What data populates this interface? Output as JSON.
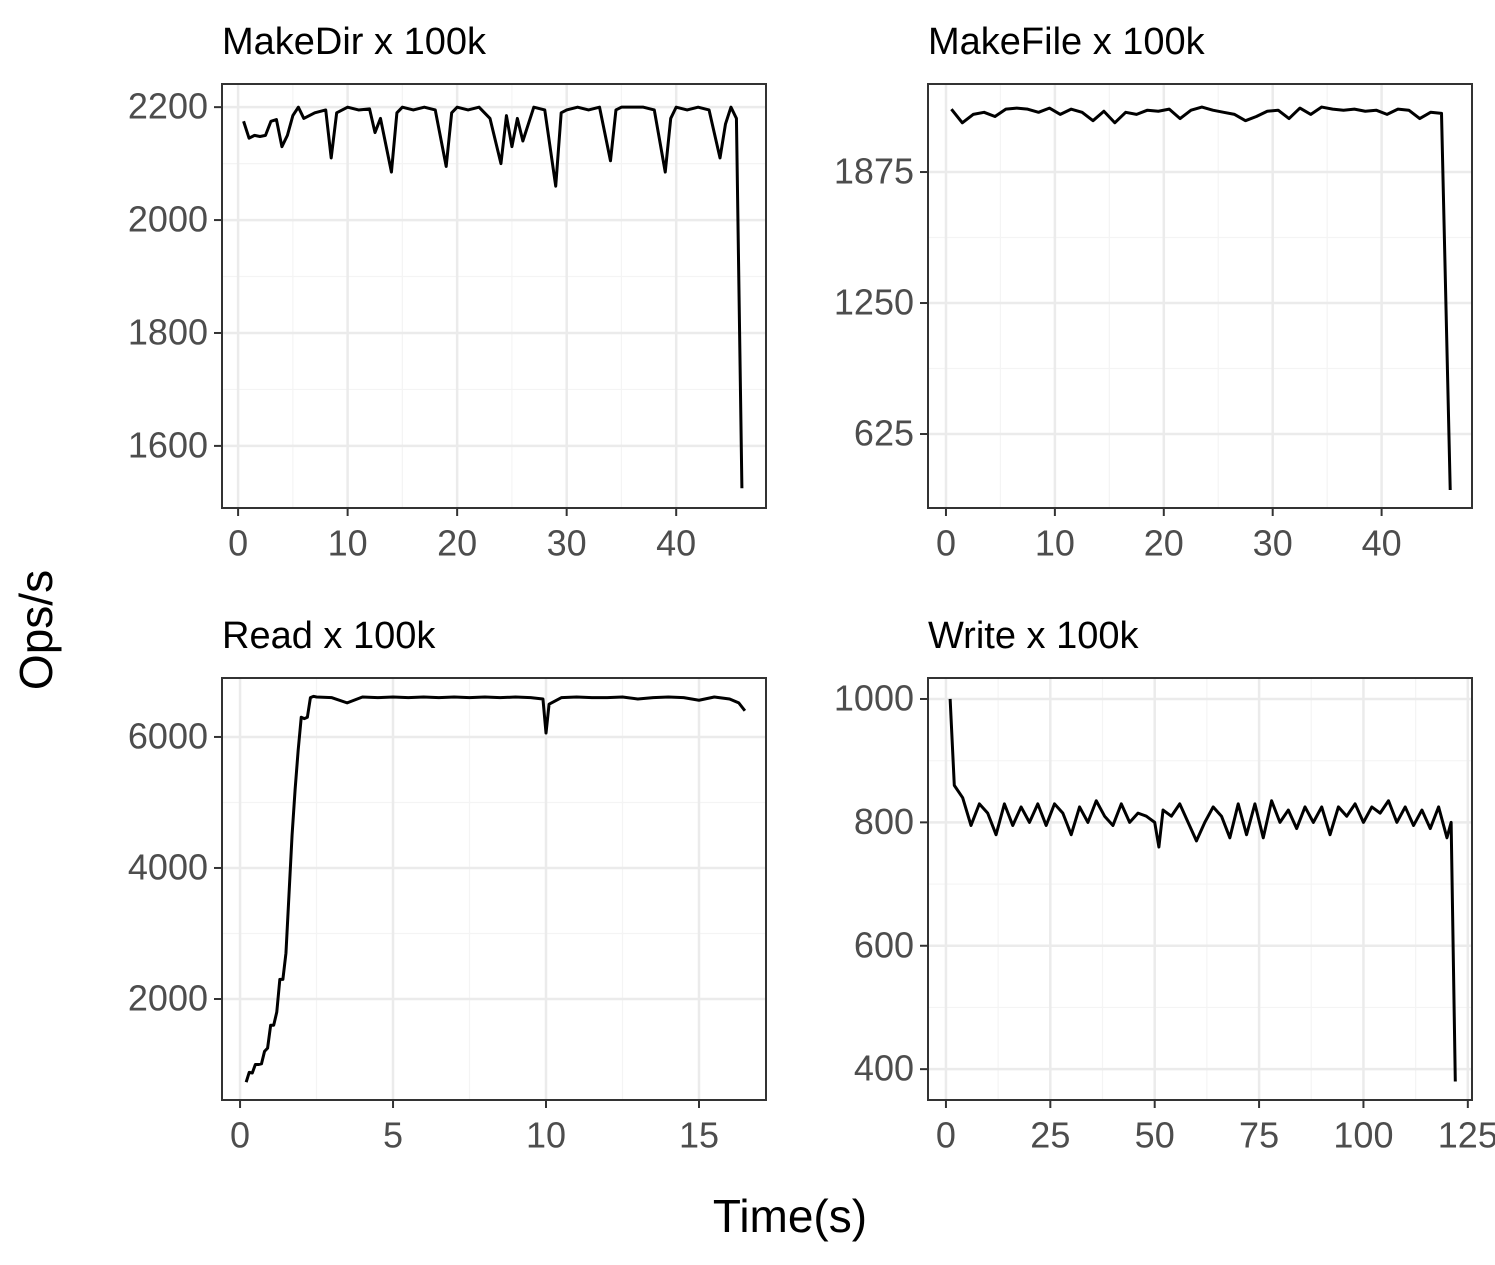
{
  "xlabel": "Time(s)",
  "ylabel": "Ops/s",
  "chart_data": [
    {
      "type": "line",
      "title": "MakeDir x 100k",
      "color": "#000000",
      "grid": true,
      "x": [
        0.5,
        1,
        1.5,
        2,
        2.5,
        3,
        3.5,
        4,
        4.5,
        5,
        5.5,
        6,
        7,
        8,
        8.5,
        9,
        10,
        11,
        12,
        12.5,
        13,
        14,
        14.5,
        15,
        16,
        17,
        18,
        19,
        19.5,
        20,
        21,
        22,
        23,
        24,
        24.5,
        25,
        25.5,
        26,
        27,
        28,
        29,
        29.5,
        30,
        31,
        32,
        33,
        34,
        34.5,
        35,
        36,
        37,
        38,
        39,
        39.5,
        40,
        41,
        42,
        43,
        44,
        44.5,
        45,
        45.5,
        46
      ],
      "values": [
        2175,
        2145,
        2150,
        2148,
        2150,
        2175,
        2178,
        2130,
        2150,
        2185,
        2200,
        2180,
        2190,
        2195,
        2110,
        2190,
        2200,
        2195,
        2197,
        2155,
        2180,
        2085,
        2190,
        2200,
        2195,
        2200,
        2195,
        2095,
        2190,
        2200,
        2195,
        2200,
        2180,
        2100,
        2185,
        2130,
        2180,
        2140,
        2200,
        2195,
        2060,
        2190,
        2195,
        2200,
        2195,
        2200,
        2105,
        2195,
        2200,
        2200,
        2200,
        2195,
        2085,
        2180,
        2200,
        2195,
        2200,
        2195,
        2110,
        2170,
        2200,
        2180,
        1525
      ],
      "xlim": [
        -1.47,
        48.2
      ],
      "ylim": [
        1490,
        2241
      ],
      "xticks": [
        0,
        10,
        20,
        30,
        40
      ],
      "yticks": [
        1600,
        1800,
        2000,
        2200
      ]
    },
    {
      "type": "line",
      "title": "MakeFile x 100k",
      "color": "#000000",
      "grid": true,
      "x": [
        0.5,
        1.5,
        2.5,
        3.5,
        4.5,
        5.5,
        6.5,
        7.5,
        8.5,
        9.5,
        10.5,
        11.5,
        12.5,
        13.5,
        14.5,
        15.5,
        16.5,
        17.5,
        18.5,
        19.5,
        20.5,
        21.5,
        22.5,
        23.5,
        24.5,
        25.5,
        26.5,
        27.5,
        28.5,
        29.5,
        30.5,
        31.5,
        32.5,
        33.5,
        34.5,
        35.5,
        36.5,
        37.5,
        38.5,
        39.5,
        40.5,
        41.5,
        42.5,
        43.5,
        44.5,
        45.5,
        46.3
      ],
      "values": [
        2175,
        2110,
        2150,
        2160,
        2140,
        2175,
        2180,
        2175,
        2160,
        2180,
        2150,
        2175,
        2160,
        2120,
        2165,
        2110,
        2160,
        2150,
        2170,
        2165,
        2175,
        2130,
        2170,
        2185,
        2170,
        2160,
        2150,
        2120,
        2140,
        2165,
        2170,
        2130,
        2180,
        2150,
        2185,
        2175,
        2170,
        2175,
        2165,
        2170,
        2150,
        2175,
        2170,
        2130,
        2160,
        2155,
        358
      ],
      "xlim": [
        -1.65,
        48.3
      ],
      "ylim": [
        272,
        2295
      ],
      "xticks": [
        0,
        10,
        20,
        30,
        40
      ],
      "yticks": [
        625,
        1250,
        1875
      ]
    },
    {
      "type": "line",
      "title": "Read x 100k",
      "color": "#000000",
      "grid": true,
      "x": [
        0.2,
        0.3,
        0.4,
        0.5,
        0.6,
        0.7,
        0.8,
        0.9,
        1.0,
        1.1,
        1.2,
        1.3,
        1.4,
        1.5,
        1.6,
        1.7,
        1.8,
        1.9,
        2.0,
        2.1,
        2.2,
        2.3,
        2.4,
        2.5,
        3,
        3.5,
        4,
        4.5,
        5,
        5.5,
        6,
        6.5,
        7,
        7.5,
        8,
        8.5,
        9,
        9.5,
        9.9,
        10,
        10.1,
        10.5,
        11,
        11.5,
        12,
        12.5,
        13,
        13.5,
        14,
        14.5,
        15,
        15.5,
        16,
        16.3,
        16.5
      ],
      "values": [
        730,
        880,
        870,
        1000,
        1000,
        1010,
        1200,
        1250,
        1600,
        1600,
        1800,
        2300,
        2300,
        2700,
        3600,
        4500,
        5200,
        5800,
        6300,
        6280,
        6300,
        6600,
        6620,
        6610,
        6600,
        6520,
        6610,
        6600,
        6610,
        6600,
        6610,
        6600,
        6610,
        6600,
        6610,
        6600,
        6610,
        6600,
        6580,
        6060,
        6500,
        6600,
        6610,
        6600,
        6600,
        6610,
        6580,
        6600,
        6610,
        6600,
        6560,
        6610,
        6580,
        6520,
        6400
      ],
      "xlim": [
        -0.59,
        17.19
      ],
      "ylim": [
        458,
        6900
      ],
      "xticks": [
        0,
        5,
        10,
        15
      ],
      "yticks": [
        2000,
        4000,
        6000
      ]
    },
    {
      "type": "line",
      "title": "Write x 100k",
      "color": "#000000",
      "grid": true,
      "x": [
        1,
        2,
        4,
        6,
        8,
        10,
        12,
        14,
        16,
        18,
        20,
        22,
        24,
        26,
        28,
        30,
        32,
        34,
        36,
        38,
        40,
        42,
        44,
        46,
        48,
        50,
        51,
        52,
        54,
        56,
        58,
        60,
        62,
        64,
        66,
        68,
        70,
        72,
        74,
        76,
        78,
        80,
        82,
        84,
        86,
        88,
        90,
        92,
        94,
        96,
        98,
        100,
        102,
        104,
        106,
        108,
        110,
        112,
        114,
        116,
        118,
        120,
        121,
        122
      ],
      "values": [
        1000,
        860,
        840,
        795,
        830,
        815,
        780,
        830,
        795,
        825,
        800,
        830,
        795,
        830,
        815,
        780,
        825,
        800,
        835,
        810,
        795,
        830,
        800,
        815,
        810,
        800,
        760,
        820,
        810,
        830,
        800,
        770,
        800,
        825,
        810,
        775,
        830,
        780,
        830,
        775,
        835,
        800,
        820,
        790,
        825,
        800,
        825,
        780,
        825,
        810,
        830,
        800,
        825,
        815,
        835,
        800,
        825,
        795,
        820,
        790,
        825,
        775,
        800,
        380
      ],
      "xlim": [
        -4.3,
        126
      ],
      "ylim": [
        350,
        1034
      ],
      "xticks": [
        0,
        25,
        50,
        75,
        100,
        125
      ],
      "yticks": [
        400,
        600,
        800,
        1000
      ]
    }
  ]
}
